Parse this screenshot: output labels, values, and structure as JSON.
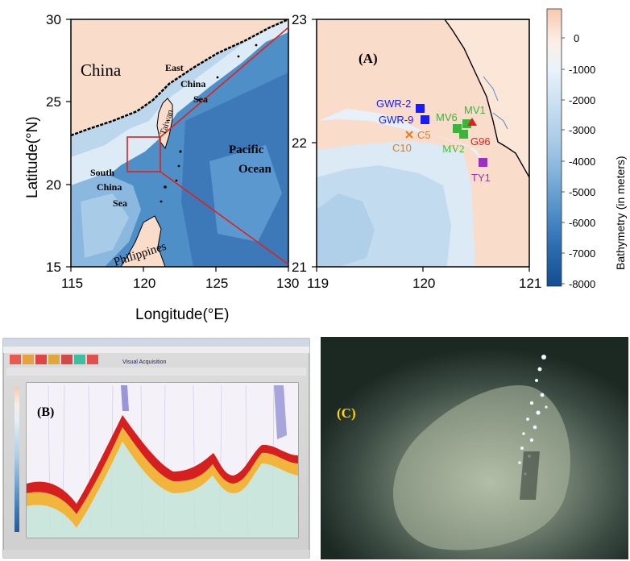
{
  "map_main": {
    "countries": [
      "China",
      "Taiwan",
      "Philippines"
    ],
    "seas": {
      "east_china_sea": [
        "East",
        "China",
        "Sea"
      ],
      "south_china_sea": [
        "South",
        "China",
        "Sea"
      ],
      "pacific_ocean": [
        "Pacific",
        "Ocean"
      ]
    },
    "x_axis": {
      "label": "Longitude(°E)",
      "ticks": [
        "115",
        "120",
        "125",
        "130"
      ]
    },
    "y_axis": {
      "label": "Latitude(°N)",
      "ticks": [
        "30",
        "25",
        "20",
        "15"
      ]
    }
  },
  "map_inset": {
    "panel_label": "(A)",
    "x_ticks": [
      "119",
      "120",
      "121"
    ],
    "y_ticks": [
      "23",
      "22",
      "21"
    ],
    "sites": [
      {
        "name": "GWR-2",
        "color": "#1a1aff",
        "marker": "square"
      },
      {
        "name": "GWR-9",
        "color": "#1a1aff",
        "marker": "square"
      },
      {
        "name": "C5",
        "color": "#e87a1e",
        "marker": "x"
      },
      {
        "name": "C10",
        "color": "#e87a1e",
        "marker": "x"
      },
      {
        "name": "MV6",
        "color": "#3cb43c",
        "marker": "square"
      },
      {
        "name": "MV1",
        "color": "#3cb43c",
        "marker": "square"
      },
      {
        "name": "MV2",
        "color": "#3cb43c",
        "marker": "square"
      },
      {
        "name": "G96",
        "color": "#e02020",
        "marker": "triangle"
      },
      {
        "name": "TY1",
        "color": "#9b2fbf",
        "marker": "square"
      }
    ]
  },
  "colorbar": {
    "label": "Bathymetry (in meters)",
    "ticks": [
      "0",
      "-1000",
      "-2000",
      "-3000",
      "-4000",
      "-5000",
      "-6000",
      "-7000",
      "-8000"
    ],
    "colors": [
      "#f9dcc9",
      "#fdf0ea",
      "#e3eff9",
      "#c4ddef",
      "#a7cbe6",
      "#7fb0da",
      "#5192c9",
      "#2d6fb2",
      "#154f96"
    ]
  },
  "panel_b": {
    "panel_label": "(B)",
    "title": "Visual Acquisition"
  },
  "panel_c": {
    "panel_label": "(C)"
  }
}
